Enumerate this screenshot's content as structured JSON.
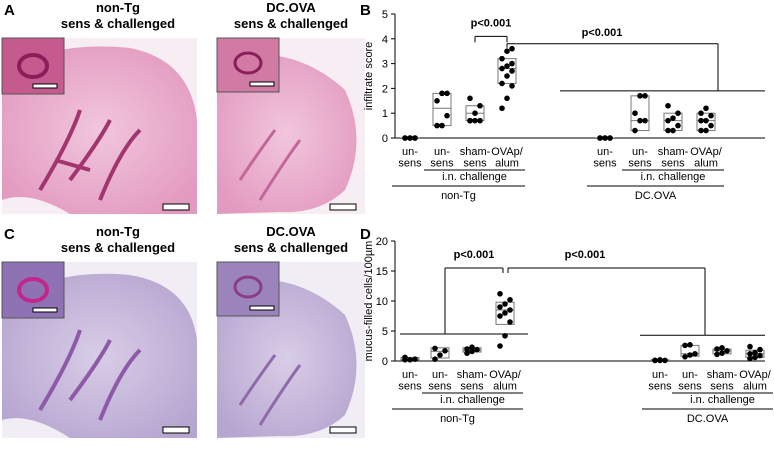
{
  "figure": {
    "panel_A": {
      "label": "A",
      "left_title": [
        "non-Tg",
        "sens & challenged"
      ],
      "right_title": [
        "DC.OVA",
        "sens & challenged"
      ]
    },
    "panel_C": {
      "label": "C",
      "left_title": [
        "non-Tg",
        "sens & challenged"
      ],
      "right_title": [
        "DC.OVA",
        "sens & challenged"
      ]
    }
  },
  "chart_data": [
    {
      "type": "box",
      "panel": "B",
      "ylabel": "infiltrate score",
      "color": "#000000",
      "ylim": [
        0,
        5
      ],
      "yticks": [
        0,
        1,
        2,
        3,
        4,
        5
      ],
      "categories": [
        "un-\nsens",
        "un-\nsens",
        "sham-\nsens",
        "OVAp/\nalum",
        "un-\nsens",
        "un-\nsens",
        "sham-\nsens",
        "OVAp/\nalum"
      ],
      "points": [
        [
          0,
          0,
          0,
          0,
          0,
          0
        ],
        [
          0.5,
          0.5,
          0.9,
          1.5,
          1.8,
          1.8
        ],
        [
          0.7,
          0.7,
          0.7,
          0.7,
          1.0,
          1.3,
          1.6
        ],
        [
          1.2,
          1.6,
          2.1,
          2.2,
          2.5,
          2.7,
          2.8,
          2.9,
          3.0,
          3.2,
          3.5,
          3.6
        ],
        [
          0,
          0,
          0,
          0,
          0,
          0
        ],
        [
          0.3,
          0.7,
          0.7,
          1.0,
          1.7,
          1.7
        ],
        [
          0.3,
          0.3,
          0.5,
          0.7,
          0.8,
          1.0,
          1.3
        ],
        [
          0.3,
          0.3,
          0.5,
          0.7,
          0.7,
          0.9,
          1.0,
          1.2
        ]
      ],
      "box_low": [
        0,
        0.5,
        0.7,
        2.2,
        0,
        0.3,
        0.3,
        0.3
      ],
      "box_median": [
        0,
        1.2,
        1.0,
        2.8,
        0,
        0.7,
        0.7,
        0.7
      ],
      "box_high": [
        0,
        1.8,
        1.3,
        3.2,
        0,
        1.7,
        1.0,
        1.0
      ],
      "groups": [
        {
          "name": "non-Tg",
          "challenge": "i.n. challenge"
        },
        {
          "name": "DC.OVA",
          "challenge": "i.n. challenge"
        }
      ],
      "annotations": [
        "p<0.001",
        "p<0.001"
      ]
    },
    {
      "type": "box",
      "panel": "D",
      "ylabel": "mucus-filled cells/100µm",
      "color": "#000000",
      "ylim": [
        0,
        20
      ],
      "yticks": [
        0,
        5,
        10,
        15,
        20
      ],
      "categories": [
        "un-\nsens",
        "un-\nsens",
        "sham-\nsens",
        "OVAp/\nalum",
        "un-\nsens",
        "un-\nsens",
        "sham-\nsens",
        "OVAp/\nalum"
      ],
      "points": [
        [
          0.2,
          0.2,
          0.3,
          0.6
        ],
        [
          0.3,
          1.0,
          1.7,
          2.1
        ],
        [
          1.3,
          1.6,
          1.9,
          2.0,
          2.3
        ],
        [
          2.5,
          4.2,
          6.5,
          7.5,
          8.0,
          8.5,
          9.0,
          9.5,
          10.2,
          11.2
        ],
        [
          0.1,
          0.1,
          0.1,
          0.1,
          0.2
        ],
        [
          0.7,
          1.0,
          1.2,
          2.6,
          2.7
        ],
        [
          1.1,
          1.3,
          1.7,
          2.0,
          2.2
        ],
        [
          0.4,
          0.6,
          0.9,
          1.2,
          1.4,
          1.9,
          2.4
        ]
      ],
      "box_low": [
        0.2,
        0.5,
        1.5,
        6.1,
        0.1,
        0.8,
        1.2,
        0.6
      ],
      "box_median": [
        0.3,
        1.6,
        1.8,
        8.5,
        0.1,
        1.2,
        1.7,
        1.2
      ],
      "box_high": [
        0.6,
        2.2,
        2.2,
        9.8,
        0.2,
        2.6,
        2.0,
        1.8
      ],
      "groups": [
        {
          "name": "non-Tg",
          "challenge": "i.n. challenge"
        },
        {
          "name": "DC.OVA",
          "challenge": "i.n. challenge"
        }
      ],
      "annotations": [
        "p<0.001",
        "p<0.001"
      ]
    }
  ]
}
